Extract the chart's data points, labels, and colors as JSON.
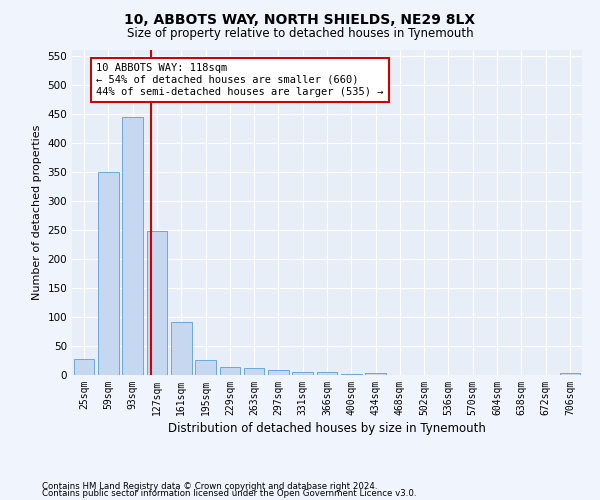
{
  "title1": "10, ABBOTS WAY, NORTH SHIELDS, NE29 8LX",
  "title2": "Size of property relative to detached houses in Tynemouth",
  "xlabel": "Distribution of detached houses by size in Tynemouth",
  "ylabel": "Number of detached properties",
  "categories": [
    "25sqm",
    "59sqm",
    "93sqm",
    "127sqm",
    "161sqm",
    "195sqm",
    "229sqm",
    "263sqm",
    "297sqm",
    "331sqm",
    "366sqm",
    "400sqm",
    "434sqm",
    "468sqm",
    "502sqm",
    "536sqm",
    "570sqm",
    "604sqm",
    "638sqm",
    "672sqm",
    "706sqm"
  ],
  "values": [
    28,
    350,
    445,
    248,
    92,
    25,
    14,
    12,
    9,
    6,
    5,
    1,
    4,
    0,
    0,
    0,
    0,
    0,
    0,
    0,
    4
  ],
  "bar_color": "#c5d8f0",
  "bar_edge_color": "#5a9fd4",
  "background_color": "#e8eef8",
  "grid_color": "#ffffff",
  "vline_color": "#cc0000",
  "annotation_text": "10 ABBOTS WAY: 118sqm\n← 54% of detached houses are smaller (660)\n44% of semi-detached houses are larger (535) →",
  "annotation_box_color": "#cc0000",
  "ylim": [
    0,
    560
  ],
  "yticks": [
    0,
    50,
    100,
    150,
    200,
    250,
    300,
    350,
    400,
    450,
    500,
    550
  ],
  "footer1": "Contains HM Land Registry data © Crown copyright and database right 2024.",
  "footer2": "Contains public sector information licensed under the Open Government Licence v3.0.",
  "fig_bg": "#f0f4fc"
}
